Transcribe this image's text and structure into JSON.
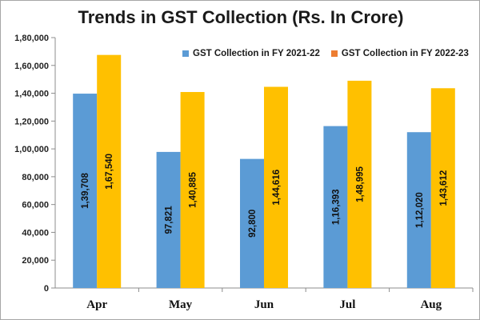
{
  "chart_data": {
    "type": "bar",
    "title": "Trends in GST Collection (Rs. In Crore)",
    "categories": [
      "Apr",
      "May",
      "Jun",
      "Jul",
      "Aug"
    ],
    "series": [
      {
        "name": "GST Collection in FY 2021-22",
        "color": "#5b9bd5",
        "values": [
          139708,
          97821,
          92800,
          116393,
          112020
        ],
        "labels": [
          "1,39,708",
          "97,821",
          "92,800",
          "1,16,393",
          "1,12,020"
        ]
      },
      {
        "name": "GST Collection in FY 2022-23",
        "color": "#ffc000",
        "legend_color": "#ed7d31",
        "values": [
          167540,
          140885,
          144616,
          148995,
          143612
        ],
        "labels": [
          "1,67,540",
          "1,40,885",
          "1,44,616",
          "1,48,995",
          "1,43,612"
        ]
      }
    ],
    "ylim": [
      0,
      180000
    ],
    "yticks": [
      0,
      20000,
      40000,
      60000,
      80000,
      100000,
      120000,
      140000,
      160000,
      180000
    ],
    "ytick_labels": [
      "0",
      "20,000",
      "40,000",
      "60,000",
      "80,000",
      "1,00,000",
      "1,20,000",
      "1,40,000",
      "1,60,000",
      "1,80,000"
    ],
    "grid": false,
    "legend_position": "top-right"
  }
}
